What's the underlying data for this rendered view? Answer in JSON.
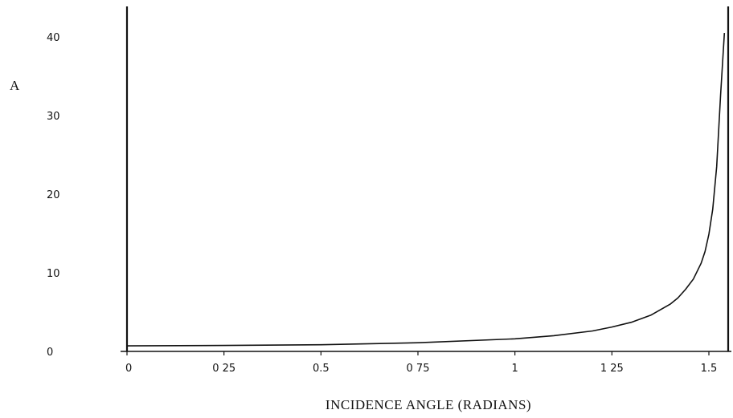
{
  "chart_data": {
    "type": "line",
    "title": "",
    "xlabel": "INCIDENCE ANGLE (RADIANS)",
    "ylabel": "A",
    "xlim": [
      0,
      1.55
    ],
    "ylim": [
      0,
      40
    ],
    "grid": false,
    "xticks": [
      0,
      0.25,
      0.5,
      0.75,
      1,
      1.25,
      1.5
    ],
    "xtick_labels": [
      "0",
      "0 25",
      "0.5",
      "0 75",
      "1",
      "1 25",
      "1.5"
    ],
    "yticks": [
      0,
      10,
      20,
      30,
      40
    ],
    "ytick_labels": [
      "0",
      "10",
      "20",
      "30",
      "40"
    ],
    "series": [
      {
        "color": "#111111",
        "x": [
          0,
          0.25,
          0.5,
          0.75,
          1.0,
          1.1,
          1.2,
          1.25,
          1.3,
          1.35,
          1.4,
          1.42,
          1.44,
          1.46,
          1.48,
          1.49,
          1.5,
          1.51,
          1.52,
          1.53,
          1.54
        ],
        "y": [
          0.7,
          0.75,
          0.85,
          1.1,
          1.6,
          2.0,
          2.6,
          3.1,
          3.7,
          4.6,
          6.0,
          6.8,
          7.9,
          9.2,
          11.2,
          12.7,
          14.9,
          18.1,
          23.5,
          32.5,
          40.5
        ]
      }
    ]
  }
}
